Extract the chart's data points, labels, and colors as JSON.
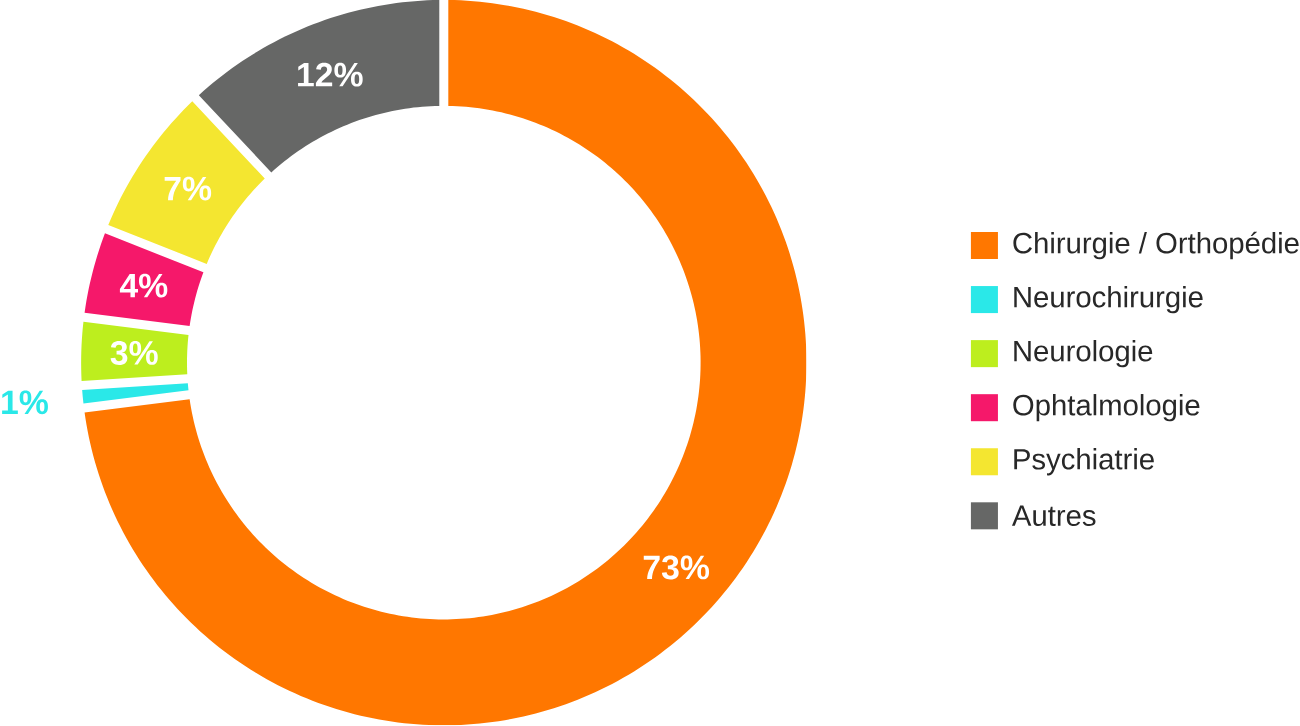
{
  "chart_data": {
    "type": "donut",
    "categories": [
      "Chirurgie / Orthopédie",
      "Neurochirurgie",
      "Neurologie",
      "Ophtalmologie",
      "Psychiatrie",
      "Autres"
    ],
    "values": [
      73,
      1,
      3,
      4,
      7,
      12
    ],
    "colors": [
      "#ff7700",
      "#2ae8e8",
      "#bdee1e",
      "#f5186a",
      "#f4e630",
      "#666766"
    ],
    "value_labels": [
      "73%",
      "1%",
      "3%",
      "4%",
      "7%",
      "12%"
    ],
    "legend": "right"
  }
}
